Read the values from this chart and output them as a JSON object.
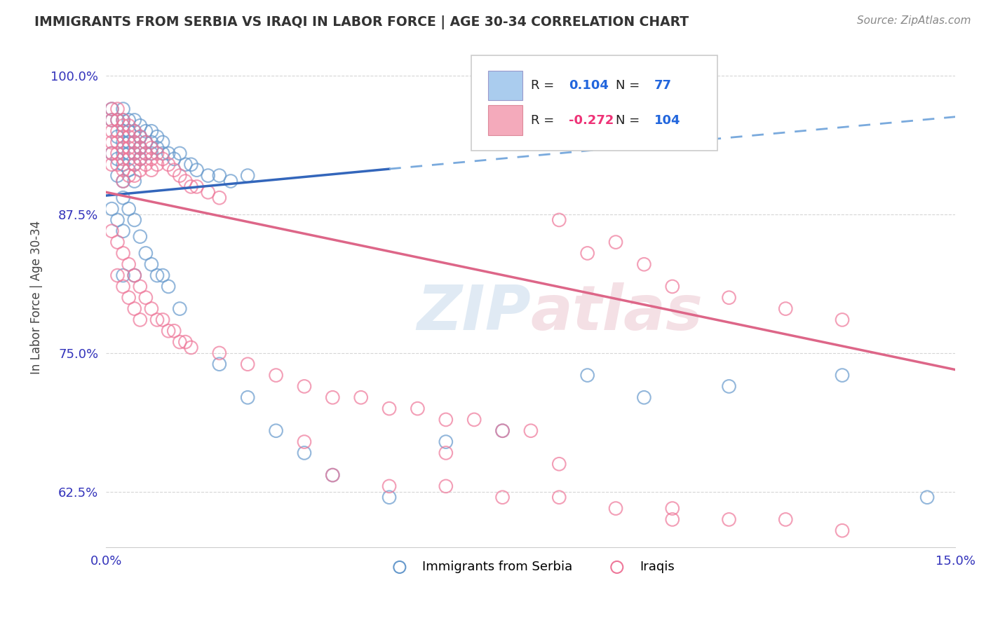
{
  "title": "IMMIGRANTS FROM SERBIA VS IRAQI IN LABOR FORCE | AGE 30-34 CORRELATION CHART",
  "source": "Source: ZipAtlas.com",
  "ylabel": "In Labor Force | Age 30-34",
  "xlim": [
    0.0,
    0.15
  ],
  "ylim": [
    0.575,
    1.025
  ],
  "xticks": [
    0.0,
    0.15
  ],
  "xticklabels": [
    "0.0%",
    "15.0%"
  ],
  "yticks": [
    0.625,
    0.75,
    0.875,
    1.0
  ],
  "yticklabels": [
    "62.5%",
    "75.0%",
    "87.5%",
    "100.0%"
  ],
  "serbia_color": "#6699cc",
  "iraqi_color": "#ee7799",
  "serbia_R": 0.104,
  "serbia_N": 77,
  "iraqi_R": -0.272,
  "iraqi_N": 104,
  "legend_label_serbia": "Immigrants from Serbia",
  "legend_label_iraqi": "Iraqis",
  "watermark": "ZIPatlas",
  "serbia_x": [
    0.001,
    0.001,
    0.001,
    0.002,
    0.002,
    0.002,
    0.002,
    0.003,
    0.003,
    0.003,
    0.003,
    0.003,
    0.003,
    0.003,
    0.003,
    0.004,
    0.004,
    0.004,
    0.004,
    0.004,
    0.005,
    0.005,
    0.005,
    0.005,
    0.005,
    0.005,
    0.006,
    0.006,
    0.006,
    0.006,
    0.007,
    0.007,
    0.007,
    0.008,
    0.008,
    0.008,
    0.009,
    0.009,
    0.01,
    0.01,
    0.011,
    0.012,
    0.013,
    0.014,
    0.015,
    0.016,
    0.018,
    0.02,
    0.022,
    0.025,
    0.001,
    0.002,
    0.003,
    0.003,
    0.004,
    0.005,
    0.005,
    0.006,
    0.007,
    0.008,
    0.009,
    0.01,
    0.011,
    0.013,
    0.02,
    0.025,
    0.03,
    0.035,
    0.04,
    0.05,
    0.06,
    0.07,
    0.085,
    0.095,
    0.11,
    0.13,
    0.145
  ],
  "serbia_y": [
    0.97,
    0.96,
    0.93,
    0.96,
    0.945,
    0.925,
    0.91,
    0.97,
    0.96,
    0.95,
    0.94,
    0.93,
    0.92,
    0.905,
    0.89,
    0.96,
    0.95,
    0.94,
    0.93,
    0.915,
    0.96,
    0.95,
    0.94,
    0.93,
    0.92,
    0.905,
    0.955,
    0.945,
    0.935,
    0.925,
    0.95,
    0.94,
    0.93,
    0.95,
    0.94,
    0.93,
    0.945,
    0.935,
    0.94,
    0.93,
    0.93,
    0.925,
    0.93,
    0.92,
    0.92,
    0.915,
    0.91,
    0.91,
    0.905,
    0.91,
    0.88,
    0.87,
    0.86,
    0.82,
    0.88,
    0.87,
    0.82,
    0.855,
    0.84,
    0.83,
    0.82,
    0.82,
    0.81,
    0.79,
    0.74,
    0.71,
    0.68,
    0.66,
    0.64,
    0.62,
    0.67,
    0.68,
    0.73,
    0.71,
    0.72,
    0.73,
    0.62
  ],
  "iraqi_x": [
    0.001,
    0.001,
    0.001,
    0.001,
    0.001,
    0.001,
    0.002,
    0.002,
    0.002,
    0.002,
    0.002,
    0.002,
    0.003,
    0.003,
    0.003,
    0.003,
    0.003,
    0.003,
    0.003,
    0.004,
    0.004,
    0.004,
    0.004,
    0.004,
    0.005,
    0.005,
    0.005,
    0.005,
    0.005,
    0.006,
    0.006,
    0.006,
    0.006,
    0.007,
    0.007,
    0.007,
    0.008,
    0.008,
    0.008,
    0.009,
    0.009,
    0.01,
    0.011,
    0.012,
    0.013,
    0.014,
    0.015,
    0.016,
    0.018,
    0.02,
    0.001,
    0.002,
    0.002,
    0.003,
    0.003,
    0.004,
    0.004,
    0.005,
    0.005,
    0.006,
    0.006,
    0.007,
    0.008,
    0.009,
    0.01,
    0.011,
    0.012,
    0.013,
    0.014,
    0.015,
    0.02,
    0.025,
    0.03,
    0.035,
    0.04,
    0.045,
    0.05,
    0.055,
    0.06,
    0.065,
    0.07,
    0.075,
    0.08,
    0.085,
    0.09,
    0.095,
    0.1,
    0.11,
    0.12,
    0.13,
    0.04,
    0.05,
    0.06,
    0.07,
    0.08,
    0.09,
    0.1,
    0.11,
    0.12,
    0.13,
    0.035,
    0.06,
    0.08,
    0.1
  ],
  "iraqi_y": [
    0.97,
    0.96,
    0.95,
    0.94,
    0.93,
    0.92,
    0.97,
    0.96,
    0.95,
    0.94,
    0.93,
    0.92,
    0.96,
    0.955,
    0.945,
    0.935,
    0.925,
    0.915,
    0.905,
    0.955,
    0.945,
    0.935,
    0.925,
    0.91,
    0.95,
    0.94,
    0.93,
    0.92,
    0.91,
    0.945,
    0.935,
    0.925,
    0.915,
    0.94,
    0.93,
    0.92,
    0.935,
    0.925,
    0.915,
    0.93,
    0.92,
    0.925,
    0.92,
    0.915,
    0.91,
    0.905,
    0.9,
    0.9,
    0.895,
    0.89,
    0.86,
    0.85,
    0.82,
    0.84,
    0.81,
    0.83,
    0.8,
    0.82,
    0.79,
    0.81,
    0.78,
    0.8,
    0.79,
    0.78,
    0.78,
    0.77,
    0.77,
    0.76,
    0.76,
    0.755,
    0.75,
    0.74,
    0.73,
    0.72,
    0.71,
    0.71,
    0.7,
    0.7,
    0.69,
    0.69,
    0.68,
    0.68,
    0.87,
    0.84,
    0.85,
    0.83,
    0.81,
    0.8,
    0.79,
    0.78,
    0.64,
    0.63,
    0.63,
    0.62,
    0.62,
    0.61,
    0.61,
    0.6,
    0.6,
    0.59,
    0.67,
    0.66,
    0.65,
    0.6
  ],
  "serbia_line": [
    [
      0.0,
      0.892
    ],
    [
      0.05,
      0.916
    ]
  ],
  "serbia_dashed_line": [
    [
      0.05,
      0.916
    ],
    [
      0.15,
      0.963
    ]
  ],
  "iraqi_line": [
    [
      0.0,
      0.895
    ],
    [
      0.15,
      0.735
    ]
  ]
}
